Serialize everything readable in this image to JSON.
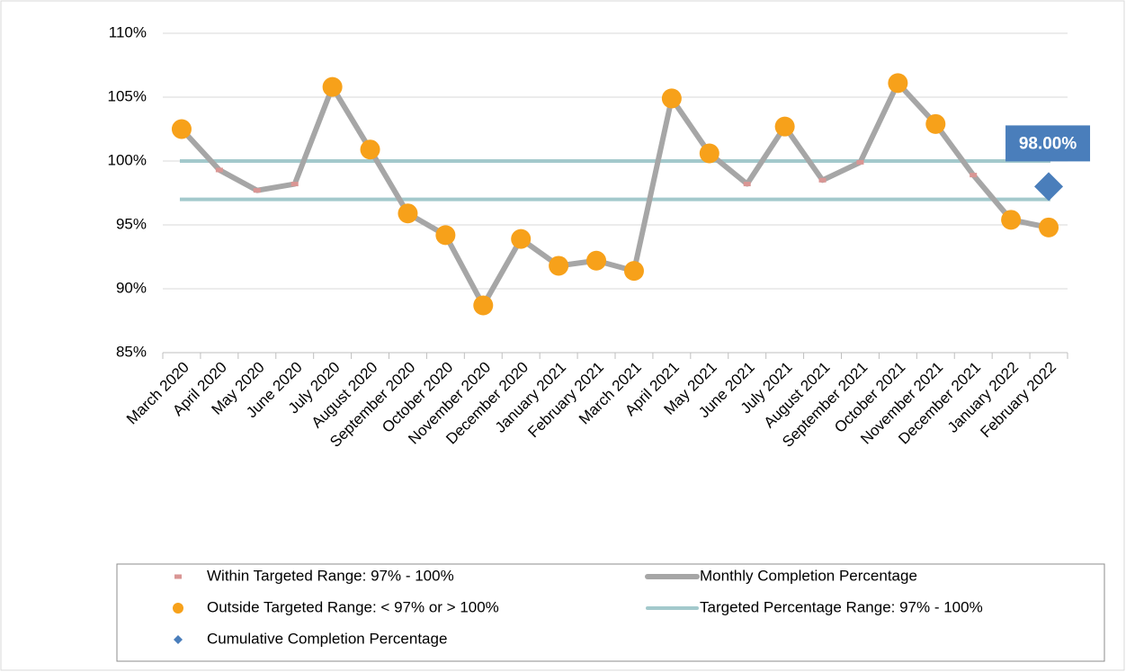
{
  "chart_data": {
    "type": "line",
    "categories": [
      "March 2020",
      "April 2020",
      "May 2020",
      "June 2020",
      "July 2020",
      "August 2020",
      "September 2020",
      "October 2020",
      "November 2020",
      "December 2020",
      "January 2021",
      "February 2021",
      "March 2021",
      "April 2021",
      "May 2021",
      "June 2021",
      "July 2021",
      "August 2021",
      "September 2021",
      "October 2021",
      "November 2021",
      "December 2021",
      "January 2022",
      "February 2022"
    ],
    "ylim": [
      85,
      110
    ],
    "yticks": [
      {
        "value": 85,
        "label": "85%"
      },
      {
        "value": 90,
        "label": "90%"
      },
      {
        "value": 95,
        "label": "95%"
      },
      {
        "value": 100,
        "label": "100%"
      },
      {
        "value": 105,
        "label": "105%"
      },
      {
        "value": 110,
        "label": "110%"
      }
    ],
    "grid": true,
    "series": [
      {
        "name": "Monthly Completion Percentage",
        "style": "line",
        "color": "#a6a6a6",
        "values": [
          102.5,
          99.3,
          97.7,
          98.2,
          105.8,
          100.9,
          95.9,
          94.2,
          88.7,
          93.9,
          91.8,
          92.2,
          91.4,
          104.9,
          100.6,
          98.2,
          102.7,
          98.5,
          99.9,
          106.1,
          102.9,
          98.9,
          95.4,
          94.8
        ]
      },
      {
        "name": "Within Targeted Range: 97% - 100%",
        "style": "square",
        "color": "#d99694",
        "values": [
          null,
          99.3,
          97.7,
          98.2,
          null,
          null,
          null,
          null,
          null,
          null,
          null,
          null,
          null,
          null,
          null,
          98.2,
          null,
          98.5,
          99.9,
          null,
          null,
          98.9,
          null,
          null
        ]
      },
      {
        "name": "Outside Targeted Range: < 97% or > 100%",
        "style": "circle",
        "color": "#f7a11a",
        "values": [
          102.5,
          null,
          null,
          null,
          105.8,
          100.9,
          95.9,
          94.2,
          88.7,
          93.9,
          91.8,
          92.2,
          91.4,
          104.9,
          100.6,
          null,
          102.7,
          null,
          null,
          106.1,
          102.9,
          null,
          95.4,
          94.8
        ]
      },
      {
        "name": "Cumulative Completion Percentage",
        "style": "diamond",
        "color": "#4a7ebb",
        "values": [
          null,
          null,
          null,
          null,
          null,
          null,
          null,
          null,
          null,
          null,
          null,
          null,
          null,
          null,
          null,
          null,
          null,
          null,
          null,
          null,
          null,
          null,
          null,
          98.0
        ],
        "value_labels": [
          null,
          null,
          null,
          null,
          null,
          null,
          null,
          null,
          null,
          null,
          null,
          null,
          null,
          null,
          null,
          null,
          null,
          null,
          null,
          null,
          null,
          null,
          null,
          "98.00%"
        ]
      },
      {
        "name": "Targeted Percentage Range: 97% - 100%",
        "style": "band",
        "color": "#a3c9cc",
        "band": [
          97,
          100
        ]
      }
    ]
  }
}
